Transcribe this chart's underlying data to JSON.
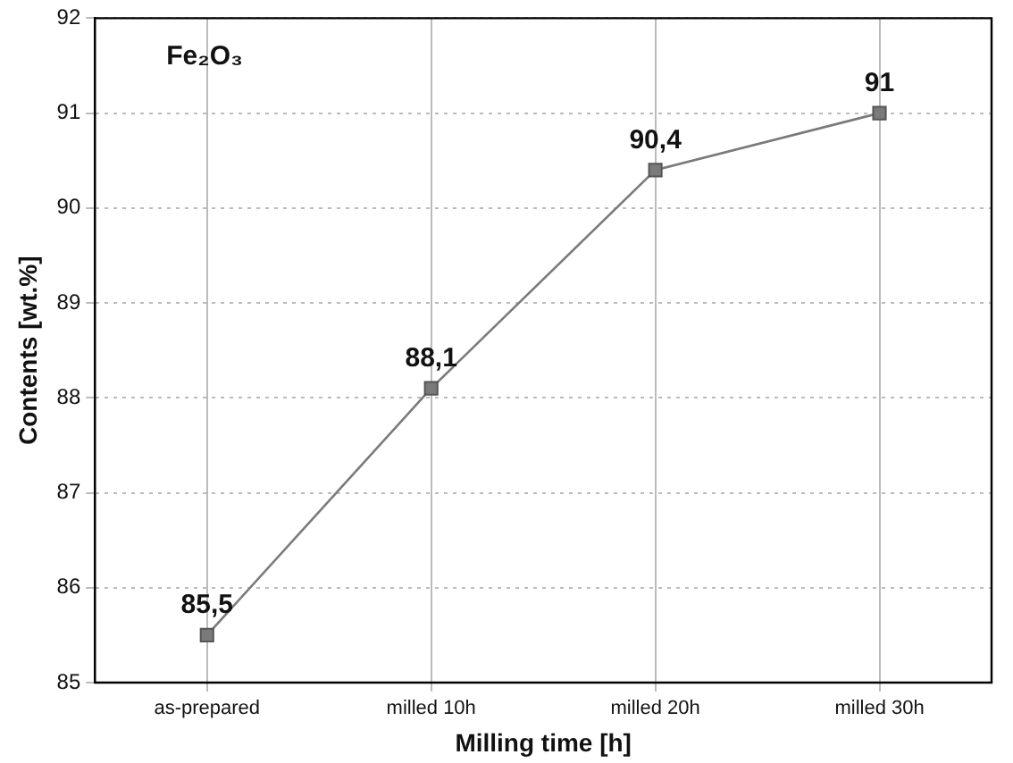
{
  "chart_data": {
    "type": "line",
    "xlabel": "Milling time [h]",
    "ylabel": "Contents [wt.%]",
    "annotations": [
      "Fe₂O₃"
    ],
    "categories": [
      "as-prepared",
      "milled 10h",
      "milled 20h",
      "milled 30h"
    ],
    "series": [
      {
        "color": "#7a7a7a",
        "values": [
          85.5,
          88.1,
          90.4,
          91
        ],
        "value_labels": [
          "85,5",
          "88,1",
          "90,4",
          "91"
        ]
      }
    ],
    "ylim": [
      85,
      92
    ],
    "yticks": [
      85,
      86,
      87,
      88,
      89,
      90,
      91,
      92
    ],
    "grid": true,
    "marker": "square",
    "line_style": "solid",
    "legend": false
  }
}
